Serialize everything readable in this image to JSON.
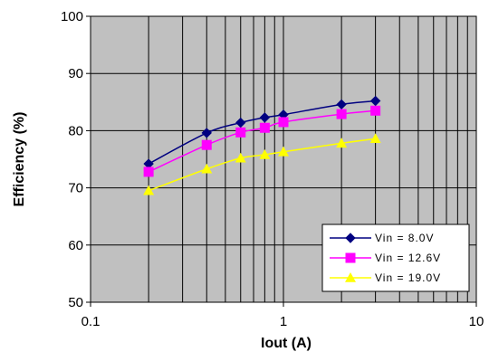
{
  "chart_data": {
    "type": "line",
    "title": "",
    "xlabel": "Iout (A)",
    "ylabel": "Efficiency (%)",
    "x_scale": "log",
    "xlim": [
      0.1,
      10
    ],
    "ylim": [
      50,
      100
    ],
    "x_ticks": [
      "0.1",
      "1",
      "10"
    ],
    "y_ticks": [
      "50",
      "60",
      "70",
      "80",
      "90",
      "100"
    ],
    "grid": true,
    "plot_background": "#c0c0c0",
    "legend_position": "bottom-right",
    "x": [
      0.2,
      0.4,
      0.6,
      0.8,
      1.0,
      2.0,
      3.0
    ],
    "series": [
      {
        "name": "Vin = 8.0V",
        "color": "#000080",
        "marker": "diamond",
        "values": [
          74.2,
          79.6,
          81.4,
          82.3,
          82.8,
          84.6,
          85.2
        ]
      },
      {
        "name": "Vin = 12.6V",
        "color": "#ff00ff",
        "marker": "square",
        "values": [
          72.8,
          77.5,
          79.7,
          80.5,
          81.5,
          82.9,
          83.5
        ]
      },
      {
        "name": "Vin = 19.0V",
        "color": "#ffff00",
        "marker": "triangle",
        "values": [
          69.5,
          73.3,
          75.2,
          75.8,
          76.3,
          77.8,
          78.6
        ]
      }
    ]
  }
}
